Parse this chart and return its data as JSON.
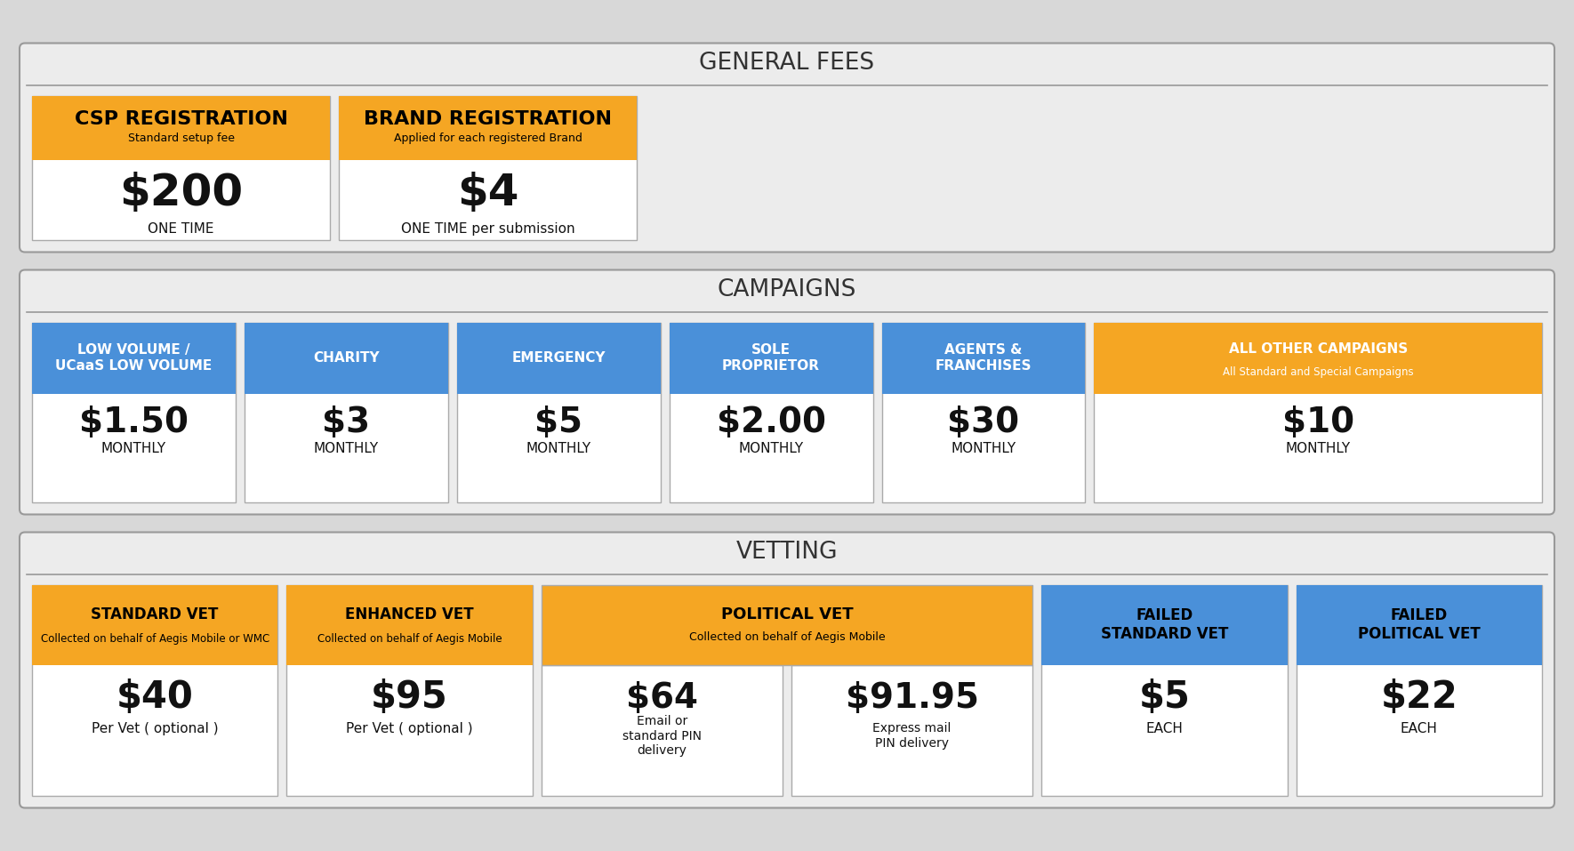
{
  "bg_color": "#d8d8d8",
  "section_bg": "#ececec",
  "section_ec": "#999999",
  "white": "#ffffff",
  "orange": "#f5a623",
  "blue": "#4a90d9",
  "dark_text": "#111111",
  "section_title_color": "#333333",
  "general_fees": {
    "title": "GENERAL FEES",
    "items": [
      {
        "header": "CSP REGISTRATION",
        "subheader": "Standard setup fee",
        "price": "$200",
        "desc": "ONE TIME",
        "color": "#f5a623"
      },
      {
        "header": "BRAND REGISTRATION",
        "subheader": "Applied for each registered Brand",
        "price": "$4",
        "desc": "ONE TIME per submission",
        "color": "#f5a623"
      }
    ]
  },
  "campaigns": {
    "title": "CAMPAIGNS",
    "items": [
      {
        "header": "LOW VOLUME /\nUCaaS LOW VOLUME",
        "price": "$1.50",
        "desc": "MONTHLY",
        "color": "#4a90d9",
        "wide_factor": 1.0
      },
      {
        "header": "CHARITY",
        "price": "$3",
        "desc": "MONTHLY",
        "color": "#4a90d9",
        "wide_factor": 1.0
      },
      {
        "header": "EMERGENCY",
        "price": "$5",
        "desc": "MONTHLY",
        "color": "#4a90d9",
        "wide_factor": 1.0
      },
      {
        "header": "SOLE\nPROPRIETOR",
        "price": "$2.00",
        "desc": "MONTHLY",
        "color": "#4a90d9",
        "wide_factor": 1.0
      },
      {
        "header": "AGENTS &\nFRANCHISES",
        "price": "$30",
        "desc": "MONTHLY",
        "color": "#4a90d9",
        "wide_factor": 1.0
      },
      {
        "header": "ALL OTHER CAMPAIGNS",
        "subheader": "All Standard and Special Campaigns",
        "price": "$10",
        "desc": "MONTHLY",
        "color": "#f5a623",
        "wide_factor": 2.2
      }
    ]
  },
  "vetting": {
    "title": "VETTING",
    "items": [
      {
        "header": "STANDARD VET",
        "subheader": "Collected on behalf of Aegis Mobile or WMC",
        "price": "$40",
        "desc": "Per Vet ( optional )",
        "color": "#f5a623",
        "wide_factor": 1.0,
        "split": false
      },
      {
        "header": "ENHANCED VET",
        "subheader": "Collected on behalf of Aegis Mobile",
        "price": "$95",
        "desc": "Per Vet ( optional )",
        "color": "#f5a623",
        "wide_factor": 1.0,
        "split": false
      },
      {
        "header": "POLITICAL VET",
        "subheader": "Collected on behalf of Aegis Mobile",
        "price_left": "$64",
        "desc_left": "Email or\nstandard PIN\ndelivery",
        "price_right": "$91.95",
        "desc_right": "Express mail\nPIN delivery",
        "color": "#f5a623",
        "wide_factor": 2.0,
        "split": true
      },
      {
        "header": "FAILED\nSTANDARD VET",
        "price": "$5",
        "desc": "EACH",
        "color": "#4a90d9",
        "wide_factor": 1.0,
        "split": false
      },
      {
        "header": "FAILED\nPOLITICAL VET",
        "price": "$22",
        "desc": "EACH",
        "color": "#4a90d9",
        "wide_factor": 1.0,
        "split": false
      }
    ]
  }
}
